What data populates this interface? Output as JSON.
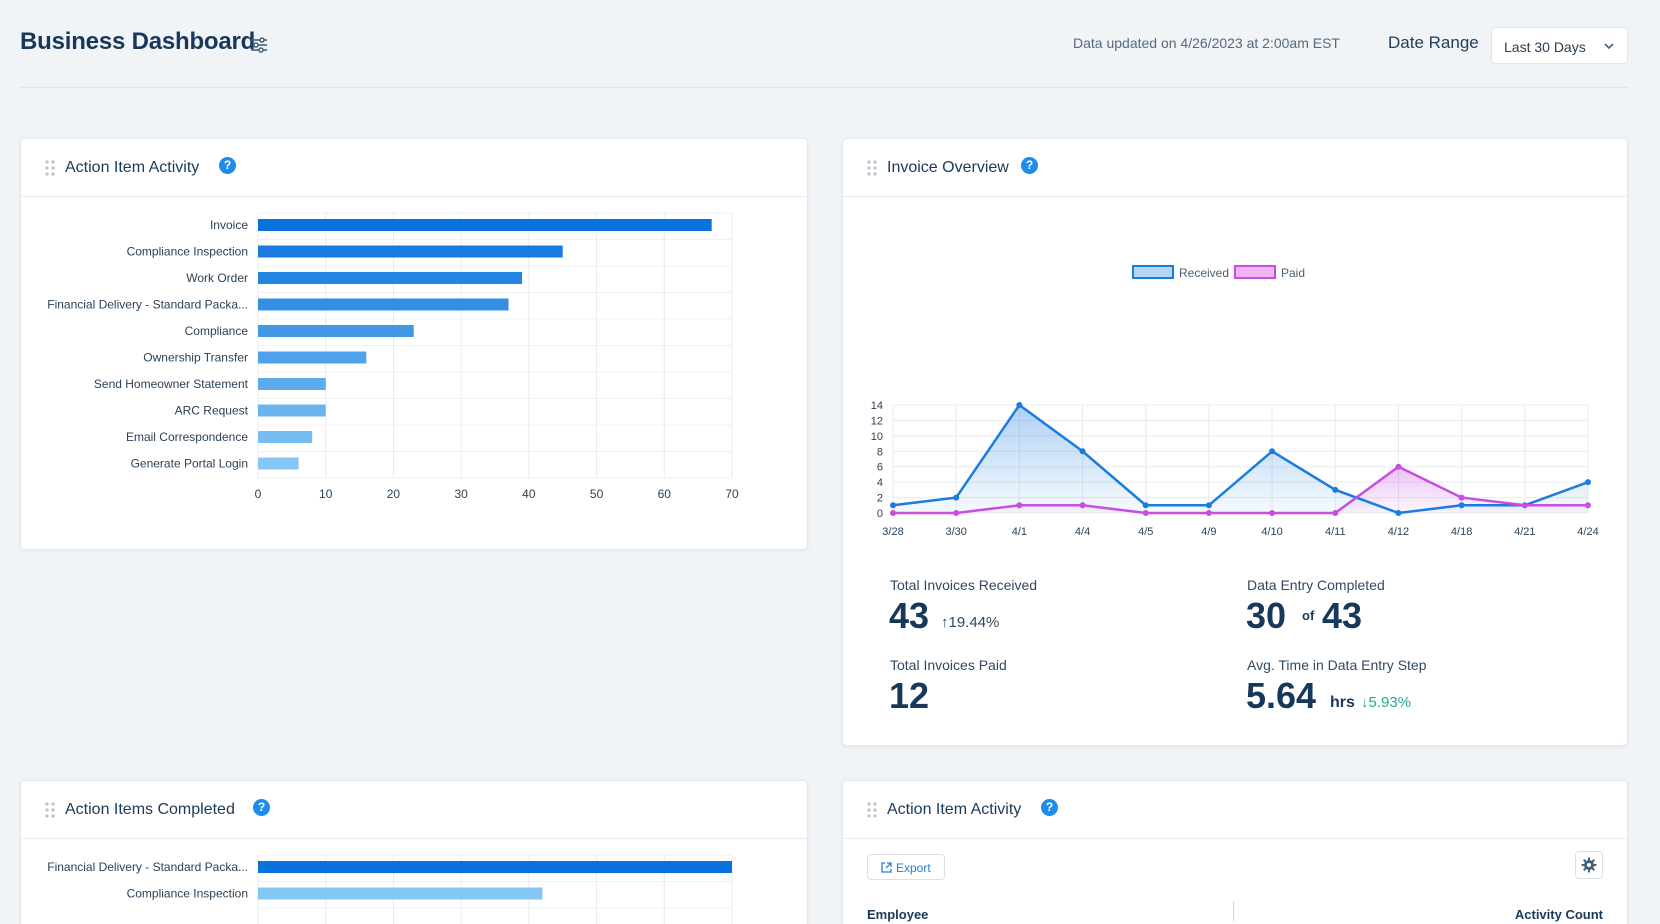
{
  "header": {
    "title": "Business Dashboard",
    "updated_text": "Data updated on 4/26/2023 at 2:00am EST",
    "date_range_label": "Date Range",
    "date_range_value": "Last 30 Days"
  },
  "colors": {
    "accent": "#1f8ceb",
    "bar_dark": "#0a72dc",
    "bar_light": "#84c7f5",
    "received": "#1a7ce0",
    "paid": "#c64ee0",
    "positive": "#2aa88e"
  },
  "action_activity": {
    "title": "Action Item Activity",
    "help": "?"
  },
  "invoice_overview": {
    "title": "Invoice Overview",
    "help": "?",
    "stats": {
      "received_label": "Total Invoices Received",
      "received_value": "43",
      "received_change": "↑19.44%",
      "entry_label": "Data Entry Completed",
      "entry_value": "30",
      "entry_of": "of",
      "entry_total": "43",
      "paid_label": "Total Invoices Paid",
      "paid_value": "12",
      "avg_label": "Avg. Time in Data Entry Step",
      "avg_value": "5.64",
      "avg_unit": "hrs",
      "avg_change": "↓5.93%"
    }
  },
  "completed": {
    "title": "Action Items Completed",
    "help": "?"
  },
  "activity_table": {
    "title": "Action Item Activity",
    "help": "?",
    "export_label": "Export",
    "columns": [
      "Employee",
      "Activity Count"
    ]
  },
  "chart_data": [
    {
      "type": "bar",
      "orientation": "horizontal",
      "title": "Action Item Activity",
      "categories": [
        "Invoice",
        "Compliance Inspection",
        "Work Order",
        "Financial Delivery - Standard Packa...",
        "Compliance",
        "Ownership Transfer",
        "Send Homeowner Statement",
        "ARC Request",
        "Email Correspondence",
        "Generate Portal Login"
      ],
      "values": [
        67,
        45,
        39,
        37,
        23,
        16,
        10,
        10,
        8,
        6
      ],
      "xlim": [
        0,
        70
      ],
      "xticks": [
        0,
        10,
        20,
        30,
        40,
        50,
        60,
        70
      ],
      "grid": true
    },
    {
      "type": "area",
      "title": "Invoice Overview",
      "categories": [
        "3/28",
        "3/30",
        "4/1",
        "4/4",
        "4/5",
        "4/9",
        "4/10",
        "4/11",
        "4/12",
        "4/18",
        "4/21",
        "4/24"
      ],
      "series": [
        {
          "name": "Received",
          "values": [
            1,
            2,
            14,
            8,
            1,
            1,
            8,
            3,
            0,
            1,
            1,
            4
          ]
        },
        {
          "name": "Paid",
          "values": [
            0,
            0,
            1,
            1,
            0,
            0,
            0,
            0,
            6,
            2,
            1,
            1
          ]
        }
      ],
      "ylim": [
        0,
        14
      ],
      "yticks": [
        0,
        2,
        4,
        6,
        8,
        10,
        12,
        14
      ],
      "legend": "top-center",
      "grid": true
    },
    {
      "type": "bar",
      "orientation": "horizontal",
      "title": "Action Items Completed",
      "categories": [
        "Financial Delivery - Standard Packa...",
        "Compliance Inspection"
      ],
      "values": [
        70,
        42
      ],
      "xlim": [
        0,
        70
      ],
      "grid": true
    }
  ]
}
